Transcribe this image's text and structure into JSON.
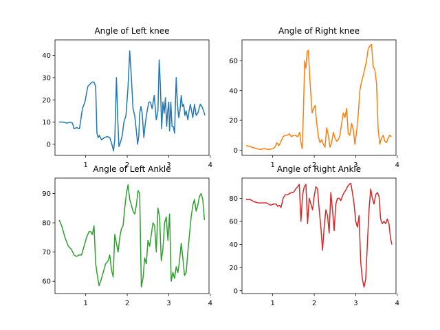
{
  "chart_data": [
    {
      "type": "line",
      "title": "Angle of Left knee",
      "xlim": [
        0.26,
        3.97
      ],
      "ylim": [
        -5,
        47
      ],
      "xticks": [
        1,
        2,
        3,
        4
      ],
      "yticks": [
        0,
        10,
        20,
        30,
        40
      ],
      "grid": false,
      "series": [
        {
          "color": "#1f77b4",
          "x": [
            0.36,
            0.45,
            0.55,
            0.62,
            0.68,
            0.72,
            0.78,
            0.85,
            0.92,
            0.98,
            1.05,
            1.1,
            1.15,
            1.2,
            1.24,
            1.27,
            1.3,
            1.33,
            1.38,
            1.45,
            1.52,
            1.58,
            1.63,
            1.67,
            1.7,
            1.74,
            1.77,
            1.8,
            1.84,
            1.88,
            1.92,
            1.97,
            2.02,
            2.06,
            2.1,
            2.14,
            2.18,
            2.22,
            2.25,
            2.28,
            2.3,
            2.33,
            2.36,
            2.4,
            2.44,
            2.48,
            2.52,
            2.56,
            2.6,
            2.65,
            2.7,
            2.74,
            2.77,
            2.8,
            2.83,
            2.86,
            2.89,
            2.92,
            2.95,
            2.97,
            3.0,
            3.02,
            3.05,
            3.08,
            3.11,
            3.14,
            3.18,
            3.21,
            3.24,
            3.27,
            3.3,
            3.33,
            3.36,
            3.39,
            3.42,
            3.46,
            3.49,
            3.52,
            3.55,
            3.58,
            3.62,
            3.66,
            3.7,
            3.73,
            3.76,
            3.8,
            3.84,
            3.87
          ],
          "y": [
            10,
            10,
            9.5,
            10,
            9.5,
            7,
            7.5,
            7,
            16,
            19,
            26,
            27,
            28,
            28,
            26,
            5,
            3,
            4,
            2,
            3,
            3.5,
            3,
            0,
            -3,
            2,
            30,
            12,
            -1,
            1,
            4,
            10,
            13,
            26,
            42,
            30,
            16,
            13,
            6,
            0,
            4,
            14,
            17,
            14,
            3,
            10,
            15,
            19,
            19,
            16,
            22,
            11,
            15,
            38,
            26,
            7,
            19,
            14,
            21,
            8,
            14,
            19,
            6,
            19,
            8,
            8,
            5,
            30,
            18,
            12,
            15,
            22,
            17,
            18,
            13,
            15,
            11,
            15,
            18,
            15,
            12,
            18,
            13,
            14,
            16,
            18,
            17,
            15,
            13
          ]
        }
      ]
    },
    {
      "type": "line",
      "title": "Angle of Right knee",
      "xlim": [
        0.26,
        3.97
      ],
      "ylim": [
        -3.5,
        74
      ],
      "xticks": [
        1,
        2,
        3,
        4
      ],
      "yticks": [
        0,
        20,
        40,
        60
      ],
      "grid": false,
      "series": [
        {
          "color": "#ff7f0e",
          "x": [
            0.36,
            0.45,
            0.55,
            0.62,
            0.7,
            0.8,
            0.9,
            1.0,
            1.05,
            1.1,
            1.15,
            1.2,
            1.25,
            1.3,
            1.35,
            1.4,
            1.45,
            1.5,
            1.55,
            1.6,
            1.65,
            1.68,
            1.71,
            1.74,
            1.77,
            1.8,
            1.83,
            1.86,
            1.89,
            1.92,
            1.95,
            1.98,
            2.02,
            2.06,
            2.1,
            2.14,
            2.18,
            2.22,
            2.26,
            2.3,
            2.34,
            2.38,
            2.42,
            2.46,
            2.5,
            2.54,
            2.58,
            2.62,
            2.66,
            2.7,
            2.74,
            2.78,
            2.82,
            2.86,
            2.9,
            2.94,
            2.98,
            3.02,
            3.06,
            3.1,
            3.14,
            3.18,
            3.22,
            3.26,
            3.3,
            3.34,
            3.38,
            3.42,
            3.46,
            3.5,
            3.54,
            3.58,
            3.62,
            3.66,
            3.7,
            3.74,
            3.78,
            3.82,
            3.86
          ],
          "y": [
            3,
            2.5,
            1.5,
            1,
            0.5,
            1,
            0.5,
            1,
            2,
            5,
            3,
            6,
            9,
            10,
            10,
            11,
            9,
            10,
            10,
            9,
            12,
            5,
            1,
            26,
            60,
            55,
            66,
            67,
            50,
            37,
            25,
            28,
            30,
            18,
            9,
            5,
            7,
            4,
            2,
            15,
            10,
            2,
            5,
            12,
            8,
            6,
            7,
            10,
            18,
            25,
            22,
            28,
            11,
            10,
            18,
            14,
            4,
            12,
            24,
            40,
            46,
            50,
            55,
            60,
            68,
            70,
            71,
            56,
            54,
            45,
            14,
            4,
            8,
            10,
            6,
            5,
            8,
            10,
            9
          ]
        }
      ]
    },
    {
      "type": "line",
      "title": "Angle of Left Ankle",
      "xlim": [
        0.26,
        3.97
      ],
      "ylim": [
        55.8,
        95.3
      ],
      "xticks": [
        1,
        2,
        3,
        4
      ],
      "yticks": [
        60,
        70,
        80,
        90
      ],
      "grid": false,
      "series": [
        {
          "color": "#2ca02c",
          "x": [
            0.36,
            0.42,
            0.5,
            0.58,
            0.65,
            0.72,
            0.78,
            0.84,
            0.9,
            0.96,
            1.02,
            1.08,
            1.12,
            1.16,
            1.2,
            1.24,
            1.28,
            1.32,
            1.36,
            1.42,
            1.48,
            1.54,
            1.58,
            1.62,
            1.66,
            1.7,
            1.74,
            1.78,
            1.82,
            1.86,
            1.9,
            1.94,
            1.98,
            2.02,
            2.06,
            2.1,
            2.14,
            2.18,
            2.22,
            2.26,
            2.3,
            2.34,
            2.38,
            2.42,
            2.46,
            2.5,
            2.54,
            2.58,
            2.62,
            2.66,
            2.7,
            2.74,
            2.78,
            2.82,
            2.86,
            2.9,
            2.94,
            2.98,
            3.02,
            3.06,
            3.1,
            3.14,
            3.18,
            3.22,
            3.26,
            3.3,
            3.34,
            3.38,
            3.42,
            3.46,
            3.5,
            3.54,
            3.58,
            3.62,
            3.66,
            3.7,
            3.74,
            3.78,
            3.82,
            3.86
          ],
          "y": [
            81,
            79,
            75,
            72,
            71,
            69,
            68.5,
            69,
            69,
            72,
            75,
            77,
            77,
            76,
            79,
            66,
            62,
            58.5,
            60,
            63,
            66,
            67,
            69,
            64,
            61.5,
            76,
            73,
            70,
            75,
            78,
            79,
            85,
            90,
            93,
            88,
            86,
            84,
            83,
            86,
            91,
            90,
            58,
            61,
            68,
            66,
            74,
            72,
            76,
            80,
            79,
            70,
            85,
            82,
            67,
            71,
            80,
            82,
            74,
            83,
            60,
            63,
            61,
            65,
            63,
            67,
            73,
            68,
            62,
            63,
            70,
            76,
            82,
            86,
            88,
            84,
            86,
            89,
            90,
            88,
            81
          ]
        }
      ]
    },
    {
      "type": "line",
      "title": "Angle of Right Ankle",
      "xlim": [
        0.26,
        3.97
      ],
      "ylim": [
        -2.5,
        97.5
      ],
      "xticks": [
        1,
        2,
        3,
        4
      ],
      "yticks": [
        0,
        20,
        40,
        60,
        80
      ],
      "grid": false,
      "series": [
        {
          "color": "#d62728",
          "x": [
            0.36,
            0.45,
            0.55,
            0.65,
            0.75,
            0.85,
            0.95,
            1.02,
            1.08,
            1.12,
            1.16,
            1.2,
            1.25,
            1.3,
            1.35,
            1.4,
            1.45,
            1.5,
            1.55,
            1.6,
            1.64,
            1.68,
            1.72,
            1.76,
            1.8,
            1.84,
            1.88,
            1.92,
            1.96,
            2.0,
            2.04,
            2.08,
            2.12,
            2.16,
            2.2,
            2.24,
            2.28,
            2.32,
            2.36,
            2.4,
            2.44,
            2.48,
            2.52,
            2.56,
            2.6,
            2.64,
            2.68,
            2.72,
            2.76,
            2.8,
            2.84,
            2.88,
            2.92,
            2.96,
            3.0,
            3.04,
            3.08,
            3.12,
            3.16,
            3.2,
            3.24,
            3.28,
            3.32,
            3.36,
            3.4,
            3.44,
            3.48,
            3.52,
            3.56,
            3.6,
            3.64,
            3.68,
            3.72,
            3.76,
            3.8,
            3.84,
            3.87
          ],
          "y": [
            79,
            79,
            77,
            76,
            76,
            76,
            74,
            75,
            75,
            73,
            74,
            72,
            80,
            83,
            83,
            84,
            85,
            85,
            88,
            90,
            92,
            60,
            83,
            90,
            92,
            58,
            80,
            75,
            70,
            82,
            90,
            88,
            70,
            55,
            35,
            55,
            70,
            65,
            50,
            85,
            70,
            52,
            75,
            80,
            80,
            78,
            82,
            85,
            87,
            90,
            92,
            93,
            85,
            75,
            60,
            55,
            65,
            25,
            10,
            3,
            10,
            40,
            70,
            88,
            80,
            75,
            83,
            85,
            82,
            62,
            58,
            60,
            58,
            62,
            58,
            45,
            40
          ]
        }
      ]
    }
  ]
}
